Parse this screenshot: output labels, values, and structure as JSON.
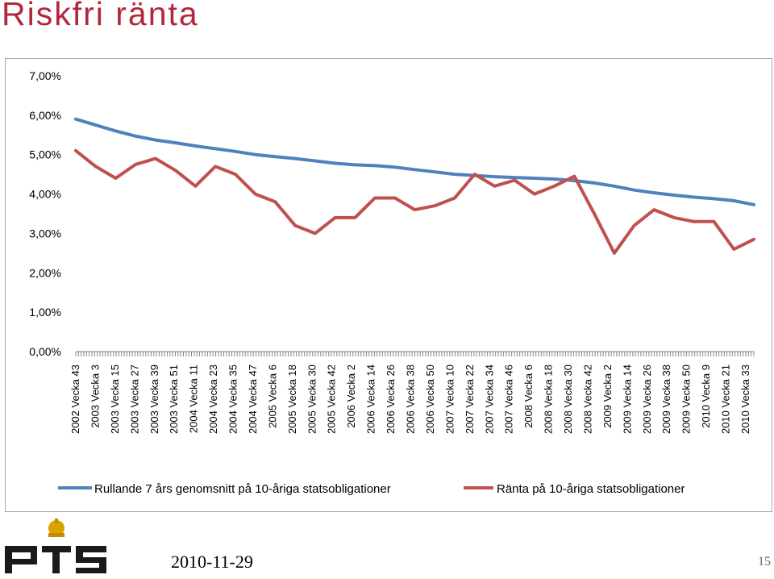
{
  "slide": {
    "title": "Riskfri ränta",
    "date": "2010-11-29",
    "page_number": "15",
    "logo_text": "PTS"
  },
  "colors": {
    "title": "#b2273c",
    "series_average": "#4f81bd",
    "series_rate": "#c0504d",
    "axis": "#868686"
  },
  "chart_data": {
    "type": "line",
    "title": "",
    "xlabel": "",
    "ylabel": "",
    "ylim": [
      0,
      7
    ],
    "y_ticks": [
      "0,00%",
      "1,00%",
      "2,00%",
      "3,00%",
      "4,00%",
      "5,00%",
      "6,00%",
      "7,00%"
    ],
    "y_tick_values": [
      0,
      1,
      2,
      3,
      4,
      5,
      6,
      7
    ],
    "grid": false,
    "legend_position": "bottom",
    "x_tick_labels": [
      "2002 Vecka 43",
      "2003 Vecka 3",
      "2003 Vecka 15",
      "2003 Vecka 27",
      "2003 Vecka 39",
      "2003 Vecka 51",
      "2004 Vecka 11",
      "2004 Vecka 23",
      "2004 Vecka 35",
      "2004 Vecka 47",
      "2005 Vecka 6",
      "2005 Vecka 18",
      "2005 Vecka 30",
      "2005 Vecka 42",
      "2006 Vecka 2",
      "2006 Vecka 14",
      "2006 Vecka 26",
      "2006 Vecka 38",
      "2006 Vecka 50",
      "2007 Vecka 10",
      "2007 Vecka 22",
      "2007 Vecka 34",
      "2007 Vecka 46",
      "2008 Vecka 6",
      "2008 Vecka 18",
      "2008 Vecka 30",
      "2008 Vecka 42",
      "2009 Vecka 2",
      "2009 Vecka 14",
      "2009 Vecka 26",
      "2009 Vecka 38",
      "2009 Vecka 50",
      "2010 Vecka 9",
      "2010 Vecka 21",
      "2010 Vecka 33"
    ],
    "x": [
      "2002 Vecka 43",
      "2003 Vecka 3",
      "2003 Vecka 15",
      "2003 Vecka 27",
      "2003 Vecka 39",
      "2003 Vecka 51",
      "2004 Vecka 11",
      "2004 Vecka 23",
      "2004 Vecka 35",
      "2004 Vecka 47",
      "2005 Vecka 6",
      "2005 Vecka 18",
      "2005 Vecka 30",
      "2005 Vecka 42",
      "2006 Vecka 2",
      "2006 Vecka 14",
      "2006 Vecka 26",
      "2006 Vecka 38",
      "2006 Vecka 50",
      "2007 Vecka 10",
      "2007 Vecka 22",
      "2007 Vecka 34",
      "2007 Vecka 46",
      "2008 Vecka 6",
      "2008 Vecka 18",
      "2008 Vecka 30",
      "2008 Vecka 42",
      "2009 Vecka 2",
      "2009 Vecka 14",
      "2009 Vecka 26",
      "2009 Vecka 38",
      "2009 Vecka 50",
      "2010 Vecka 9",
      "2010 Vecka 21",
      "2010 Vecka 33"
    ],
    "series": [
      {
        "name": "Rullande 7 års genomsnitt på 10-åriga statsobligationer",
        "values": [
          5.9,
          5.75,
          5.6,
          5.47,
          5.37,
          5.3,
          5.22,
          5.15,
          5.08,
          5.0,
          4.95,
          4.9,
          4.84,
          4.78,
          4.74,
          4.72,
          4.68,
          4.62,
          4.56,
          4.5,
          4.47,
          4.44,
          4.42,
          4.4,
          4.38,
          4.34,
          4.28,
          4.2,
          4.1,
          4.03,
          3.97,
          3.92,
          3.88,
          3.83,
          3.73
        ]
      },
      {
        "name": "Ränta på 10-åriga statsobligationer",
        "values": [
          5.1,
          4.7,
          4.4,
          4.75,
          4.9,
          4.6,
          4.2,
          4.7,
          4.5,
          4.0,
          3.8,
          3.2,
          3.0,
          3.4,
          3.4,
          3.9,
          3.9,
          3.6,
          3.7,
          3.9,
          4.5,
          4.2,
          4.35,
          4.0,
          4.2,
          4.45,
          3.5,
          2.5,
          3.2,
          3.6,
          3.4,
          3.3,
          3.3,
          2.6,
          2.85
        ]
      }
    ]
  }
}
